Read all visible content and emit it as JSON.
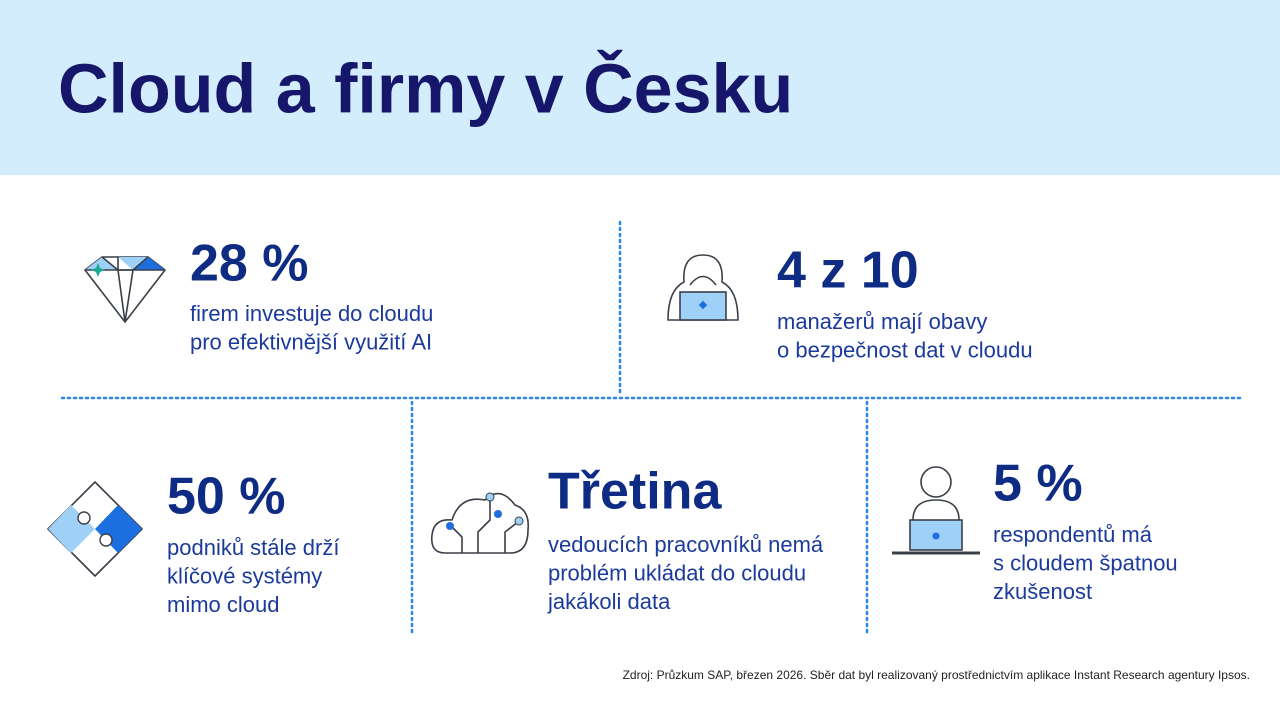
{
  "header": {
    "title": "Cloud a firmy v Česku"
  },
  "stats": [
    {
      "value": "28 %",
      "lines": [
        "firem investuje do cloudu",
        "pro efektivnější využití AI"
      ]
    },
    {
      "value": "4 z 10",
      "lines": [
        "manažerů mají obavy",
        "o bezpečnost dat v cloudu"
      ]
    },
    {
      "value": "50 %",
      "lines": [
        "podniků stále drží",
        "klíčové systémy",
        "mimo cloud"
      ]
    },
    {
      "value": "Třetina",
      "lines": [
        "vedoucích pracovníků nemá",
        "problém ukládat do cloudu",
        "jakákoli data"
      ]
    },
    {
      "value": "5 %",
      "lines": [
        "respondentů má",
        "s cloudem špatnou",
        "zkušenost"
      ]
    }
  ],
  "footer": {
    "source": "Zdroj: Průzkum SAP, březen 2026. Sběr dat byl realizovaný prostřednictvím aplikace Instant Research agentury Ipsos."
  }
}
